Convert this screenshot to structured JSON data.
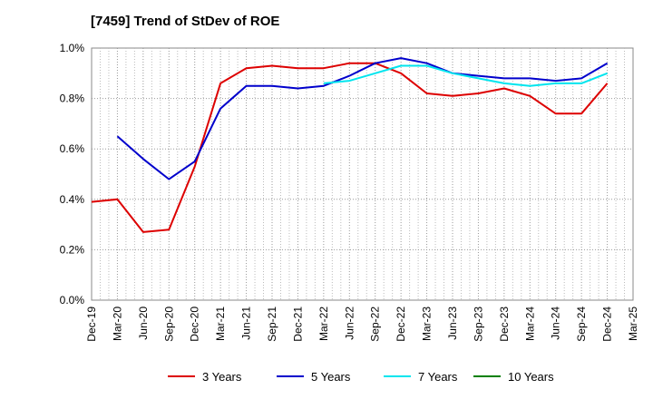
{
  "chart_data": {
    "type": "line",
    "title": "[7459]  Trend of StDev of ROE",
    "xlabel": "",
    "ylabel": "",
    "ylim": [
      0,
      1.0
    ],
    "yticks": [
      "0.0%",
      "0.2%",
      "0.4%",
      "0.6%",
      "0.8%",
      "1.0%"
    ],
    "x": [
      "Dec-19",
      "Mar-20",
      "Jun-20",
      "Sep-20",
      "Dec-20",
      "Mar-21",
      "Jun-21",
      "Sep-21",
      "Dec-21",
      "Mar-22",
      "Jun-22",
      "Sep-22",
      "Dec-22",
      "Mar-23",
      "Jun-23",
      "Sep-23",
      "Dec-23",
      "Mar-24",
      "Jun-24",
      "Sep-24",
      "Dec-24",
      "Mar-25"
    ],
    "grid": true,
    "legend_position": "bottom",
    "series": [
      {
        "name": "3 Years",
        "color": "#dd0000",
        "values": [
          0.39,
          0.4,
          0.27,
          0.28,
          0.53,
          0.86,
          0.92,
          0.93,
          0.92,
          0.92,
          0.94,
          0.94,
          0.9,
          0.82,
          0.81,
          0.82,
          0.84,
          0.81,
          0.74,
          0.74,
          0.86,
          null
        ]
      },
      {
        "name": "5 Years",
        "color": "#0000cc",
        "values": [
          null,
          0.65,
          0.56,
          0.48,
          0.55,
          0.76,
          0.85,
          0.85,
          0.84,
          0.85,
          0.89,
          0.94,
          0.96,
          0.94,
          0.9,
          0.89,
          0.88,
          0.88,
          0.87,
          0.88,
          0.94,
          null
        ]
      },
      {
        "name": "7 Years",
        "color": "#00e5ee",
        "values": [
          null,
          null,
          null,
          null,
          null,
          null,
          null,
          null,
          null,
          0.86,
          0.87,
          0.9,
          0.93,
          0.93,
          0.9,
          0.88,
          0.86,
          0.85,
          0.86,
          0.86,
          0.9,
          null
        ]
      },
      {
        "name": "10 Years",
        "color": "#008000",
        "values": [
          null,
          null,
          null,
          null,
          null,
          null,
          null,
          null,
          null,
          null,
          null,
          null,
          null,
          null,
          null,
          null,
          null,
          null,
          null,
          null,
          null,
          null
        ]
      }
    ]
  }
}
